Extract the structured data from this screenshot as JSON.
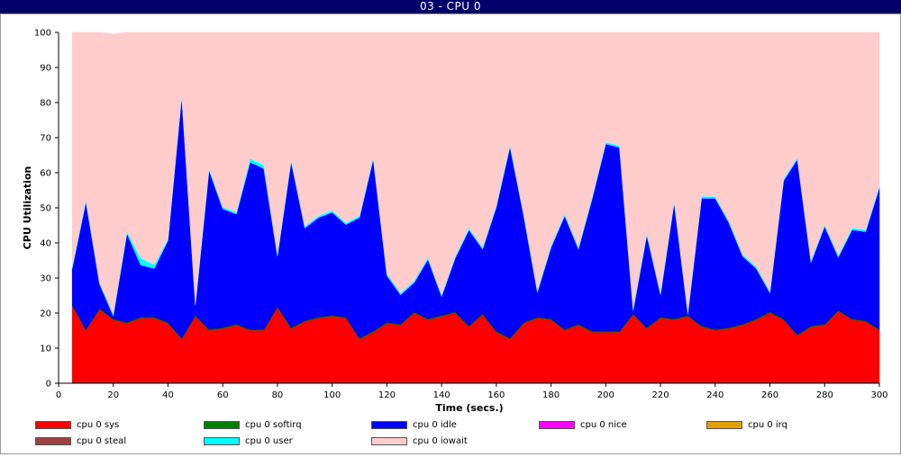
{
  "window": {
    "title": "03 - CPU 0"
  },
  "chart_data": {
    "type": "area",
    "stacked": true,
    "xlabel": "Time (secs.)",
    "ylabel": "CPU Utilization",
    "xlim": [
      0,
      300
    ],
    "ylim": [
      0,
      100
    ],
    "xticks": [
      0,
      20,
      40,
      60,
      80,
      100,
      120,
      140,
      160,
      180,
      200,
      220,
      240,
      260,
      280,
      300
    ],
    "yticks": [
      0,
      10,
      20,
      30,
      40,
      50,
      60,
      70,
      80,
      90,
      100
    ],
    "grid": false,
    "legend_position": "bottom",
    "x": [
      5,
      10,
      15,
      20,
      25,
      30,
      35,
      40,
      45,
      50,
      55,
      60,
      65,
      70,
      75,
      80,
      85,
      90,
      95,
      100,
      105,
      110,
      115,
      120,
      125,
      130,
      135,
      140,
      145,
      150,
      155,
      160,
      165,
      170,
      175,
      180,
      185,
      190,
      195,
      200,
      205,
      210,
      215,
      220,
      225,
      230,
      235,
      240,
      245,
      250,
      255,
      260,
      265,
      270,
      275,
      280,
      285,
      290,
      295,
      300
    ],
    "series": [
      {
        "name": "cpu 0 sys",
        "color": "#ff0000",
        "values": [
          22,
          15,
          21,
          18,
          17,
          18.5,
          18.5,
          17,
          12.5,
          19,
          15,
          15.5,
          16.5,
          15,
          15,
          21.5,
          15.5,
          17.5,
          18.5,
          19,
          18.5,
          12.5,
          14.5,
          17,
          16.5,
          20,
          18,
          19,
          20,
          16,
          19.5,
          14.5,
          12.5,
          17,
          18.5,
          18,
          15,
          16.5,
          14.5,
          14.5,
          14.5,
          19.5,
          15.5,
          18.5,
          18,
          19,
          16,
          15,
          15.5,
          16.5,
          18,
          20,
          18,
          13.5,
          16,
          16.5,
          20.5,
          18,
          17.5,
          15
        ]
      },
      {
        "name": "cpu 0 softirq",
        "color": "#008000",
        "values": [
          0.3,
          0.3,
          0.3,
          0.3,
          0.3,
          0.3,
          0.3,
          0.3,
          0.3,
          0.3,
          0.3,
          0.3,
          0.3,
          0.3,
          0.3,
          0.3,
          0.3,
          0.3,
          0.3,
          0.3,
          0.3,
          0.3,
          0.3,
          0.3,
          0.3,
          0.3,
          0.3,
          0.3,
          0.3,
          0.3,
          0.3,
          0.3,
          0.3,
          0.3,
          0.3,
          0.3,
          0.3,
          0.3,
          0.3,
          0.3,
          0.3,
          0.3,
          0.3,
          0.3,
          0.3,
          0.3,
          0.3,
          0.3,
          0.3,
          0.3,
          0.3,
          0.3,
          0.3,
          0.3,
          0.3,
          0.3,
          0.3,
          0.3,
          0.3,
          0.3
        ]
      },
      {
        "name": "cpu 0 idle",
        "color": "#0000ff",
        "values": [
          10.4,
          36.4,
          6.9,
          0.9,
          25.4,
          14.9,
          13.9,
          23.4,
          68.9,
          2.9,
          45.4,
          33.9,
          31.4,
          47.7,
          45.9,
          14.4,
          47.4,
          26.4,
          28.4,
          29.4,
          26.4,
          34.4,
          49.1,
          13.4,
          8.4,
          8.4,
          17.0,
          5.4,
          15.4,
          27.4,
          18.4,
          35.4,
          54.6,
          30.4,
          7.1,
          20.4,
          32.4,
          21.4,
          37.7,
          53.4,
          52.4,
          0.9,
          26.4,
          6.4,
          33.1,
          0.4,
          36.4,
          37.4,
          29.9,
          19.4,
          14.4,
          5.4,
          39.4,
          50.0,
          18.1,
          27.9,
          15.1,
          25.4,
          25.4,
          40.4
        ]
      },
      {
        "name": "cpu 0 nice",
        "color": "#ff00ff",
        "values": [
          0,
          0,
          0,
          0,
          0,
          0,
          0,
          0,
          0,
          0,
          0,
          0,
          0,
          0,
          0,
          0,
          0,
          0,
          0,
          0,
          0,
          0,
          0,
          0,
          0,
          0,
          0,
          0,
          0,
          0,
          0,
          0,
          0,
          0,
          0,
          0,
          0,
          0,
          0,
          0,
          0,
          0,
          0,
          0,
          0,
          0,
          0,
          0,
          0,
          0,
          0,
          0,
          0,
          0,
          0,
          0,
          0,
          0,
          0,
          0
        ]
      },
      {
        "name": "cpu 0 irq",
        "color": "#e0a000",
        "values": [
          0,
          0,
          0,
          0,
          0,
          0,
          0,
          0,
          0,
          0,
          0,
          0,
          0,
          0,
          0,
          0,
          0,
          0,
          0,
          0,
          0,
          0,
          0,
          0,
          0,
          0,
          0,
          0,
          0,
          0,
          0,
          0,
          0,
          0,
          0,
          0,
          0,
          0,
          0,
          0,
          0,
          0,
          0,
          0,
          0,
          0,
          0,
          0,
          0,
          0,
          0,
          0,
          0,
          0,
          0,
          0,
          0,
          0,
          0,
          0
        ]
      },
      {
        "name": "cpu 0 steal",
        "color": "#a04040",
        "values": [
          0,
          0,
          0,
          0,
          0,
          0,
          0,
          0,
          0,
          0,
          0,
          0,
          0,
          0,
          0,
          0,
          0,
          0,
          0,
          0,
          0,
          0,
          0,
          0,
          0,
          0,
          0,
          0,
          0,
          0,
          0,
          0,
          0,
          0,
          0,
          0,
          0,
          0,
          0,
          0,
          0,
          0,
          0,
          0,
          0,
          0,
          0,
          0,
          0,
          0,
          0,
          0,
          0,
          0,
          0,
          0,
          0,
          0,
          0,
          0
        ]
      },
      {
        "name": "cpu 0 user",
        "color": "#00ffff",
        "values": [
          0.5,
          0.5,
          0.5,
          0.5,
          0.5,
          2,
          1,
          0.5,
          0.5,
          0.5,
          0.5,
          0.5,
          0.5,
          1,
          1,
          0.5,
          0.5,
          0.5,
          0.5,
          0.5,
          0.5,
          0.5,
          0.5,
          0.5,
          0.5,
          0.5,
          0.5,
          0.5,
          0.5,
          0.5,
          0.5,
          0.5,
          0.5,
          0.5,
          0.5,
          0.5,
          0.5,
          0.5,
          0.5,
          0.5,
          0.5,
          0.5,
          0.5,
          0.5,
          0.5,
          0.5,
          0.5,
          0.5,
          0.5,
          0.5,
          0.5,
          0.5,
          0.5,
          0.5,
          0.5,
          0.5,
          0.5,
          0.5,
          0.5,
          0.5
        ]
      },
      {
        "name": "cpu 0 iowait",
        "color": "#ffcccc",
        "values": [
          66.8,
          47.8,
          71.3,
          79.8,
          56.8,
          64.3,
          66.3,
          58.8,
          17.8,
          77.3,
          38.8,
          49.8,
          51.3,
          36,
          37.8,
          63.3,
          36.3,
          55.3,
          52.3,
          50.8,
          54.3,
          52.3,
          35.6,
          68.8,
          74.3,
          70.8,
          64.2,
          74.8,
          63.8,
          55.8,
          61.3,
          49.3,
          32.1,
          51.8,
          73.6,
          60.8,
          51.8,
          61.3,
          47,
          31.3,
          32.3,
          78.8,
          57.3,
          74.3,
          48.1,
          79.8,
          46.8,
          46.8,
          53.8,
          63.3,
          66.8,
          73.8,
          41.8,
          35.7,
          65.1,
          54.8,
          63.6,
          55.8,
          56.3,
          43.8
        ]
      }
    ]
  }
}
